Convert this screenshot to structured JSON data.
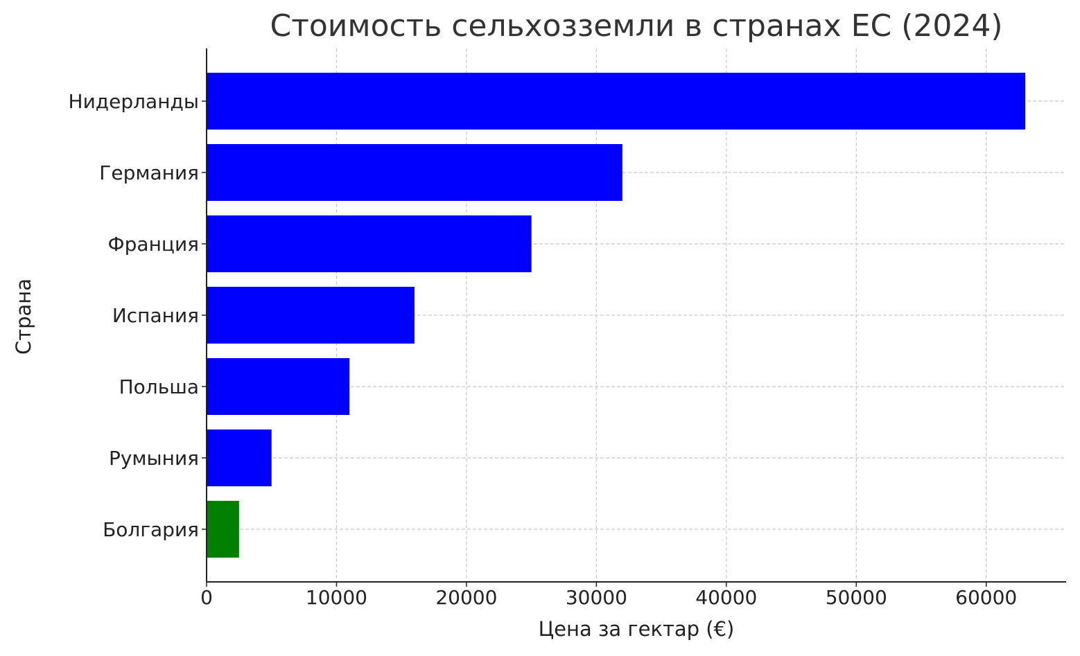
{
  "chart_data": {
    "type": "barh",
    "title": "Стоимость сельхозземли в странах ЕС (2024)",
    "x_label": "Цена за гектар (€)",
    "y_label": "Страна",
    "categories": [
      "Нидерланды",
      "Германия",
      "Франция",
      "Испания",
      "Польша",
      "Румыния",
      "Болгария"
    ],
    "values": [
      63000,
      32000,
      25000,
      16000,
      11000,
      5000,
      2500
    ],
    "colors": [
      "#0000ff",
      "#0000ff",
      "#0000ff",
      "#0000ff",
      "#0000ff",
      "#0000ff",
      "#008000"
    ],
    "xlim": [
      0,
      66150
    ],
    "xticks": [
      0,
      10000,
      20000,
      30000,
      40000,
      50000,
      60000
    ],
    "grid": true
  }
}
